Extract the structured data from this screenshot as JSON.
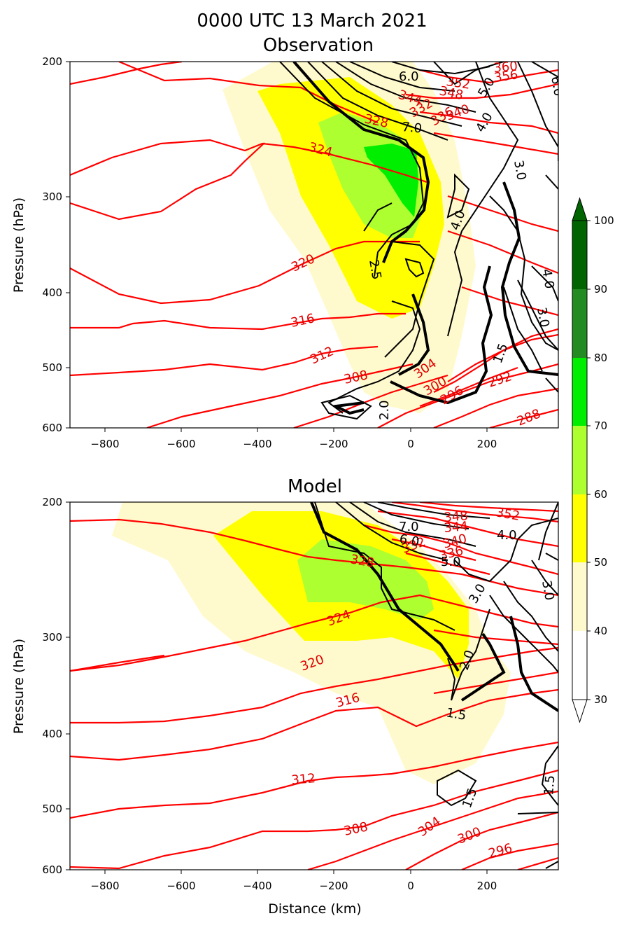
{
  "figure": {
    "title_line1": "0000 UTC 13 March 2021",
    "title_line2": "Observation",
    "colors": {
      "isentrope": "#ff0000",
      "pv_contour": "#000000",
      "axis": "#000000"
    }
  },
  "chart_data": [
    {
      "type": "contour",
      "title": "Observation",
      "xlabel": "",
      "ylabel": "Pressure (hPa)",
      "xlim": [
        -890,
        385
      ],
      "ylim": [
        600,
        200
      ],
      "yscale": "log",
      "x_ticks": [
        "−800",
        "−600",
        "−400",
        "−200",
        "0",
        "200"
      ],
      "y_ticks": [
        "200",
        "300",
        "400",
        "500",
        "600"
      ],
      "isentrope_labels": [
        "352",
        "356",
        "360",
        "348",
        "344",
        "340",
        "336",
        "332",
        "328",
        "324",
        "320",
        "316",
        "312",
        "308",
        "304",
        "300",
        "296",
        "292",
        "288"
      ],
      "pv_labels": [
        "6.0",
        "7.0",
        "5.0",
        "4.0",
        "6.0",
        "3.0",
        "4.0",
        "2.5",
        "4.0",
        "3.0",
        "2.0",
        "1.5"
      ],
      "filled_field_levels": [
        40,
        50,
        60,
        70
      ]
    },
    {
      "type": "contour",
      "title": "Model",
      "xlabel": "Distance (km)",
      "ylabel": "Pressure (hPa)",
      "xlim": [
        -890,
        385
      ],
      "ylim": [
        600,
        200
      ],
      "yscale": "log",
      "x_ticks": [
        "−800",
        "−600",
        "−400",
        "−200",
        "0",
        "200"
      ],
      "y_ticks": [
        "200",
        "300",
        "400",
        "500",
        "600"
      ],
      "isentrope_labels": [
        "348",
        "352",
        "344",
        "340",
        "336",
        "332",
        "328",
        "324",
        "320",
        "316",
        "312",
        "308",
        "304",
        "300",
        "296"
      ],
      "pv_labels": [
        "7.0",
        "6.0",
        "5.0",
        "4.0",
        "3.0",
        "3.0",
        "2.0",
        "1.5",
        "1.5",
        "1.5"
      ],
      "filled_field_levels": [
        40,
        50,
        60
      ]
    }
  ],
  "colorbar": {
    "ticks": [
      "30",
      "40",
      "50",
      "60",
      "70",
      "80",
      "90",
      "100"
    ],
    "bands": [
      {
        "from": 30,
        "to": 40,
        "color": "#ffffff"
      },
      {
        "from": 40,
        "to": 50,
        "color": "#fffacd"
      },
      {
        "from": 50,
        "to": 60,
        "color": "#ffff00"
      },
      {
        "from": 60,
        "to": 70,
        "color": "#adff2f"
      },
      {
        "from": 70,
        "to": 80,
        "color": "#00ee00"
      },
      {
        "from": 80,
        "to": 90,
        "color": "#228b22"
      },
      {
        "from": 90,
        "to": 100,
        "color": "#006400"
      }
    ],
    "extend_top_color": "#006400",
    "extend_bottom_color": "#ffffff"
  }
}
